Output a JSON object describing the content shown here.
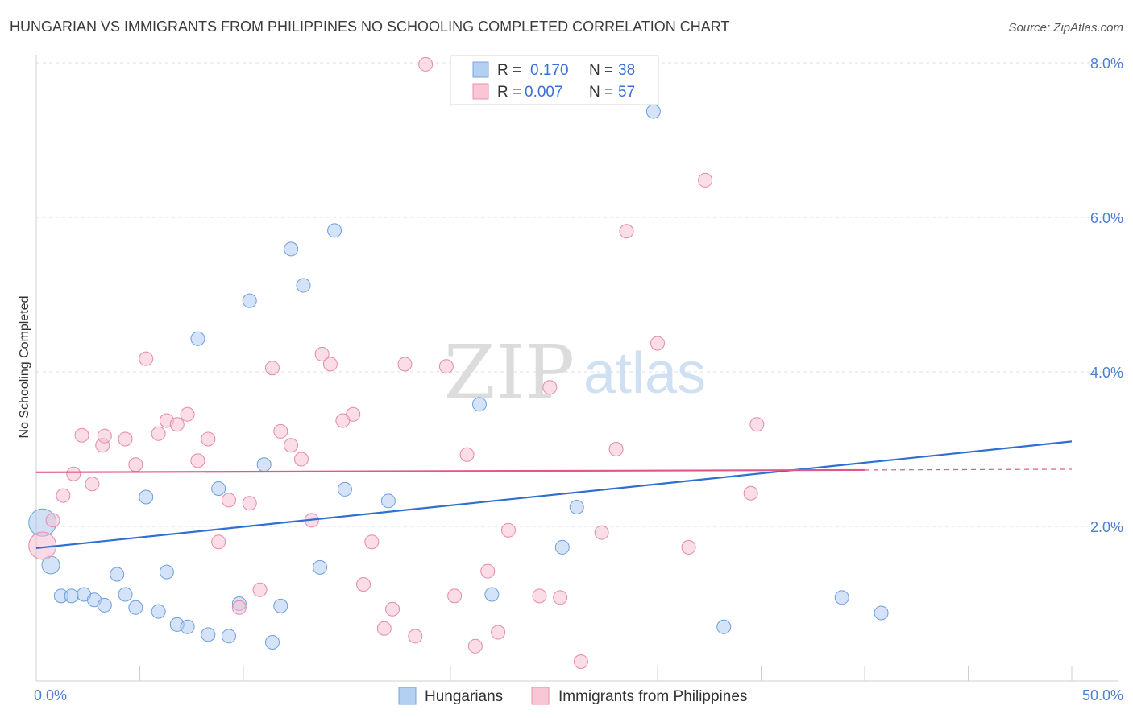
{
  "title": "HUNGARIAN VS IMMIGRANTS FROM PHILIPPINES NO SCHOOLING COMPLETED CORRELATION CHART",
  "source": "Source: ZipAtlas.com",
  "watermark": {
    "zip": "ZIP",
    "atlas": "atlas"
  },
  "colors": {
    "blue_fill": "#a9c8ef",
    "blue_stroke": "#6d9fdc",
    "blue_line": "#2f6fd1",
    "pink_fill": "#f6bccd",
    "pink_stroke": "#e68aa7",
    "pink_line": "#e2578a",
    "tick_text": "#4a7fd1",
    "grid": "#dddddd"
  },
  "legend": {
    "rows": [
      {
        "r_label": "R =",
        "r_value": "0.170",
        "n_label": "N =",
        "n_value": "38",
        "series": "blue"
      },
      {
        "r_label": "R =",
        "r_value": "0.007",
        "n_label": "N =",
        "n_value": "57",
        "series": "pink"
      }
    ]
  },
  "bottom_legend": [
    "Hungarians",
    "Immigrants from Philippines"
  ],
  "chart_data": {
    "type": "scatter",
    "title": "HUNGARIAN VS IMMIGRANTS FROM PHILIPPINES NO SCHOOLING COMPLETED CORRELATION CHART",
    "xlabel": "",
    "ylabel": "No Schooling Completed",
    "xlim": [
      0,
      50
    ],
    "ylim": [
      0,
      8.0
    ],
    "x_tick_labels": [
      "0.0%",
      "50.0%"
    ],
    "y_ticks": [
      2.0,
      4.0,
      6.0,
      8.0
    ],
    "y_tick_labels": [
      "2.0%",
      "4.0%",
      "6.0%",
      "8.0%"
    ],
    "grid": true,
    "series": [
      {
        "name": "Hungarians",
        "color": "blue",
        "r": 0.17,
        "n": 38,
        "trend": {
          "x": [
            0,
            50
          ],
          "y": [
            1.72,
            3.1
          ]
        },
        "points": [
          {
            "x": 0.3,
            "y": 2.05,
            "big": 1
          },
          {
            "x": 0.7,
            "y": 1.5,
            "big": 0
          },
          {
            "x": 1.2,
            "y": 1.1
          },
          {
            "x": 1.7,
            "y": 1.1
          },
          {
            "x": 2.3,
            "y": 1.12
          },
          {
            "x": 2.8,
            "y": 1.05
          },
          {
            "x": 3.3,
            "y": 0.98
          },
          {
            "x": 3.9,
            "y": 1.38
          },
          {
            "x": 4.3,
            "y": 1.12
          },
          {
            "x": 4.8,
            "y": 0.95
          },
          {
            "x": 5.3,
            "y": 2.38
          },
          {
            "x": 5.9,
            "y": 0.9
          },
          {
            "x": 6.3,
            "y": 1.41
          },
          {
            "x": 6.8,
            "y": 0.73
          },
          {
            "x": 7.3,
            "y": 0.7
          },
          {
            "x": 7.8,
            "y": 4.43
          },
          {
            "x": 8.3,
            "y": 0.6
          },
          {
            "x": 8.8,
            "y": 2.49
          },
          {
            "x": 9.3,
            "y": 0.58
          },
          {
            "x": 9.8,
            "y": 1.0
          },
          {
            "x": 10.3,
            "y": 4.92
          },
          {
            "x": 11.0,
            "y": 2.8
          },
          {
            "x": 11.4,
            "y": 0.5
          },
          {
            "x": 11.8,
            "y": 0.97
          },
          {
            "x": 12.3,
            "y": 5.59
          },
          {
            "x": 12.9,
            "y": 5.12
          },
          {
            "x": 13.7,
            "y": 1.47
          },
          {
            "x": 14.4,
            "y": 5.83
          },
          {
            "x": 14.9,
            "y": 2.48
          },
          {
            "x": 17.0,
            "y": 2.33
          },
          {
            "x": 21.4,
            "y": 3.58
          },
          {
            "x": 22.0,
            "y": 1.12
          },
          {
            "x": 25.4,
            "y": 1.73
          },
          {
            "x": 26.1,
            "y": 2.25
          },
          {
            "x": 29.8,
            "y": 7.37
          },
          {
            "x": 33.2,
            "y": 0.7
          },
          {
            "x": 38.9,
            "y": 1.08
          },
          {
            "x": 40.8,
            "y": 0.88
          }
        ]
      },
      {
        "name": "Immigrants from Philippines",
        "color": "pink",
        "r": 0.007,
        "n": 57,
        "trend": {
          "x": [
            0,
            40
          ],
          "y": [
            2.7,
            2.73
          ]
        },
        "trend_dashed": {
          "x": [
            40,
            50
          ],
          "y": [
            2.73,
            2.74
          ]
        },
        "points": [
          {
            "x": 0.3,
            "y": 1.75,
            "big": 1
          },
          {
            "x": 0.8,
            "y": 2.08
          },
          {
            "x": 1.3,
            "y": 2.4
          },
          {
            "x": 1.8,
            "y": 2.68
          },
          {
            "x": 2.7,
            "y": 2.55
          },
          {
            "x": 2.2,
            "y": 3.18
          },
          {
            "x": 3.2,
            "y": 3.05
          },
          {
            "x": 3.3,
            "y": 3.17
          },
          {
            "x": 4.3,
            "y": 3.13
          },
          {
            "x": 4.8,
            "y": 2.8
          },
          {
            "x": 5.3,
            "y": 4.17
          },
          {
            "x": 5.9,
            "y": 3.2
          },
          {
            "x": 6.3,
            "y": 3.37
          },
          {
            "x": 6.8,
            "y": 3.32
          },
          {
            "x": 7.3,
            "y": 3.45
          },
          {
            "x": 7.8,
            "y": 2.85
          },
          {
            "x": 8.3,
            "y": 3.13
          },
          {
            "x": 8.8,
            "y": 1.8
          },
          {
            "x": 9.3,
            "y": 2.34
          },
          {
            "x": 9.8,
            "y": 0.95
          },
          {
            "x": 10.3,
            "y": 2.3
          },
          {
            "x": 10.8,
            "y": 1.18
          },
          {
            "x": 11.4,
            "y": 4.05
          },
          {
            "x": 11.8,
            "y": 3.23
          },
          {
            "x": 12.3,
            "y": 3.05
          },
          {
            "x": 12.8,
            "y": 2.87
          },
          {
            "x": 13.3,
            "y": 2.08
          },
          {
            "x": 13.8,
            "y": 4.23
          },
          {
            "x": 14.2,
            "y": 4.1
          },
          {
            "x": 14.8,
            "y": 3.37
          },
          {
            "x": 15.3,
            "y": 3.45
          },
          {
            "x": 15.8,
            "y": 1.25
          },
          {
            "x": 16.2,
            "y": 1.8
          },
          {
            "x": 16.8,
            "y": 0.68
          },
          {
            "x": 17.2,
            "y": 0.93
          },
          {
            "x": 17.8,
            "y": 4.1
          },
          {
            "x": 18.3,
            "y": 0.58
          },
          {
            "x": 18.8,
            "y": 7.98
          },
          {
            "x": 19.8,
            "y": 4.07
          },
          {
            "x": 20.2,
            "y": 1.1
          },
          {
            "x": 21.2,
            "y": 0.45
          },
          {
            "x": 20.8,
            "y": 2.93
          },
          {
            "x": 21.8,
            "y": 1.42
          },
          {
            "x": 22.3,
            "y": 0.63
          },
          {
            "x": 22.8,
            "y": 1.95
          },
          {
            "x": 24.3,
            "y": 1.1
          },
          {
            "x": 24.8,
            "y": 3.8
          },
          {
            "x": 25.3,
            "y": 1.08
          },
          {
            "x": 26.3,
            "y": 0.25
          },
          {
            "x": 27.3,
            "y": 1.92
          },
          {
            "x": 28.0,
            "y": 3.0
          },
          {
            "x": 28.5,
            "y": 5.82
          },
          {
            "x": 30.0,
            "y": 4.37
          },
          {
            "x": 31.5,
            "y": 1.73
          },
          {
            "x": 32.3,
            "y": 6.48
          },
          {
            "x": 34.5,
            "y": 2.43
          },
          {
            "x": 34.8,
            "y": 3.32
          }
        ]
      }
    ]
  }
}
